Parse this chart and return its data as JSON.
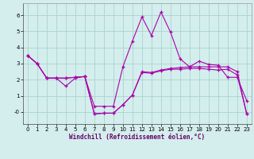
{
  "xlabel": "Windchill (Refroidissement éolien,°C)",
  "background_color": "#d4eeed",
  "grid_color": "#a8d4cc",
  "line_color": "#aa00aa",
  "x_ticks": [
    0,
    1,
    2,
    3,
    4,
    5,
    6,
    7,
    8,
    9,
    10,
    11,
    12,
    13,
    14,
    15,
    16,
    17,
    18,
    19,
    20,
    21,
    22,
    23
  ],
  "y_ticks": [
    0,
    1,
    2,
    3,
    4,
    5,
    6
  ],
  "ylim": [
    -0.75,
    6.75
  ],
  "xlim": [
    -0.5,
    23.5
  ],
  "series1_y": [
    3.5,
    3.0,
    2.1,
    2.1,
    1.6,
    2.1,
    2.2,
    0.35,
    0.35,
    0.35,
    2.8,
    4.4,
    5.9,
    4.75,
    6.2,
    4.95,
    3.3,
    2.8,
    3.15,
    2.95,
    2.9,
    2.15,
    2.15,
    0.7
  ],
  "series2_y": [
    3.5,
    3.0,
    2.1,
    2.1,
    2.1,
    2.15,
    2.2,
    -0.12,
    -0.08,
    -0.08,
    0.45,
    1.05,
    2.5,
    2.45,
    2.6,
    2.7,
    2.75,
    2.8,
    2.8,
    2.8,
    2.8,
    2.8,
    2.5,
    -0.12
  ],
  "series3_y": [
    3.5,
    3.0,
    2.1,
    2.1,
    2.1,
    2.15,
    2.2,
    -0.12,
    -0.08,
    -0.08,
    0.45,
    1.05,
    2.45,
    2.4,
    2.55,
    2.65,
    2.65,
    2.7,
    2.7,
    2.65,
    2.6,
    2.65,
    2.3,
    -0.12
  ]
}
